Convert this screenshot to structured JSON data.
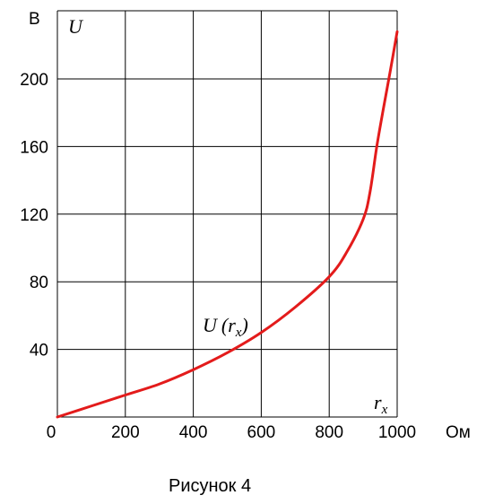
{
  "chart_data": {
    "type": "line",
    "ylabel": "U",
    "yunit": "В",
    "xlabel_main": "r",
    "xlabel_sub": "x",
    "xunit": "Ом",
    "xlim": [
      0,
      1000
    ],
    "ylim": [
      0,
      230
    ],
    "x_ticks": [
      0,
      200,
      400,
      600,
      800,
      1000
    ],
    "x_tick_labels": [
      "0",
      "200",
      "400",
      "600",
      "800",
      "1000"
    ],
    "y_ticks": [
      40,
      80,
      120,
      160,
      200
    ],
    "y_tick_labels": [
      "40",
      "80",
      "120",
      "160",
      "200"
    ],
    "grid": true,
    "series": [
      {
        "name_main": "U",
        "name_paren_open": "(",
        "name_var": "r",
        "name_sub": "x",
        "name_paren_close": ")",
        "color": "#e31b1b",
        "x": [
          0,
          100,
          200,
          300,
          400,
          500,
          600,
          700,
          800,
          850,
          900,
          920,
          940,
          960,
          980,
          1000
        ],
        "y": [
          0,
          6.5,
          13,
          19.5,
          28,
          38,
          50,
          65,
          83,
          97,
          117,
          133,
          160,
          183,
          205,
          228
        ]
      }
    ]
  },
  "caption": "Рисунок 4"
}
